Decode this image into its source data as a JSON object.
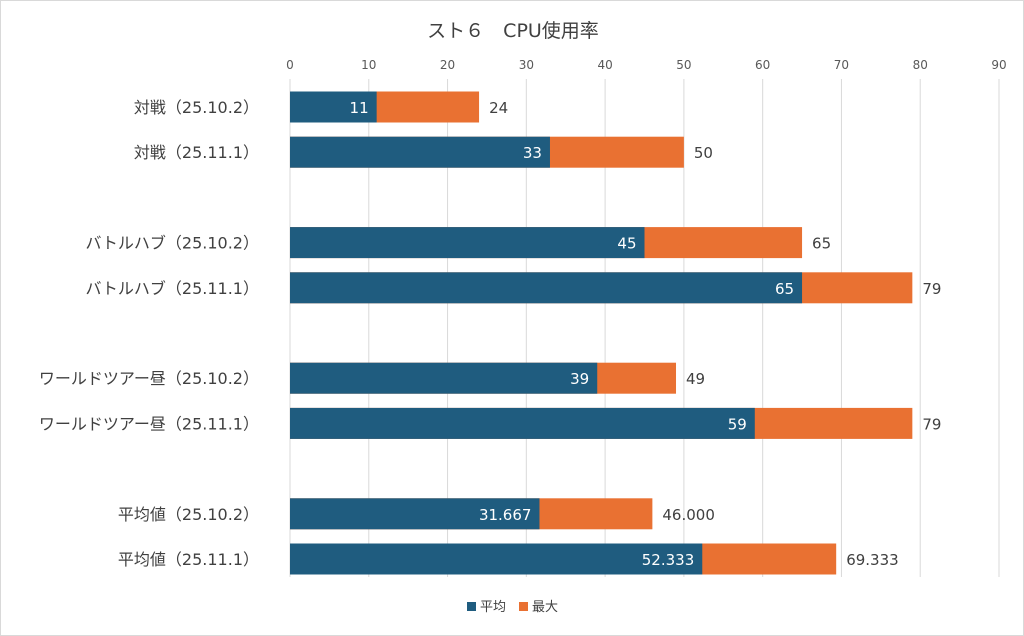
{
  "chart_data": {
    "type": "bar",
    "orientation": "horizontal",
    "stacked": false,
    "title": "スト６　CPU使用率",
    "categories": [
      "対戦（25.10.2）",
      "対戦（25.11.1）",
      "",
      "バトルハブ（25.10.2）",
      "バトルハブ（25.11.1）",
      "",
      "ワールドツアー昼（25.10.2）",
      "ワールドツアー昼（25.11.1）",
      "",
      "平均値（25.10.2）",
      "平均値（25.11.1）"
    ],
    "series": [
      {
        "name": "平均",
        "color": "#1f5c7f",
        "values": [
          11,
          33,
          null,
          45,
          65,
          null,
          39,
          59,
          null,
          31.667,
          52.333
        ],
        "labels": [
          "11",
          "33",
          "",
          "45",
          "65",
          "",
          "39",
          "59",
          "",
          "31.667",
          "52.333"
        ]
      },
      {
        "name": "最大",
        "color": "#e97132",
        "values": [
          24,
          50,
          null,
          65,
          79,
          null,
          49,
          79,
          null,
          46.0,
          69.333
        ],
        "labels": [
          "24",
          "50",
          "",
          "65",
          "79",
          "",
          "49",
          "79",
          "",
          "46.000",
          "69.333"
        ]
      }
    ],
    "xlim": [
      0,
      90
    ],
    "xticks": [
      "0",
      "10",
      "20",
      "30",
      "40",
      "50",
      "60",
      "70",
      "80",
      "90"
    ],
    "axis_position": "top",
    "grid": true,
    "legend": "bottom"
  }
}
